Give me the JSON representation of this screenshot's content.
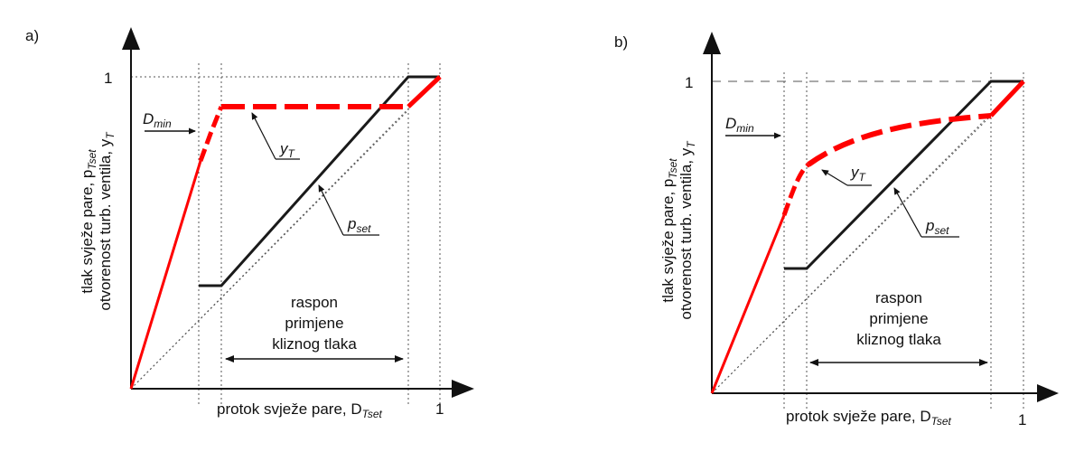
{
  "panels": [
    {
      "id": "a",
      "panel_label": "a)",
      "y_axis_line1": "tlak svježe pare, p",
      "y_axis_sub1": "Tset",
      "y_axis_line2": "otvorenost turb. ventila, y",
      "y_axis_sub2": "T",
      "x_axis_main": "protok svježe pare, D",
      "x_axis_sub": "Tset",
      "x_tick_one": "1",
      "y_tick_one": "1",
      "dmin_main": "D",
      "dmin_sub": "min",
      "yt_main": "y",
      "yt_sub": "T",
      "pset_main": "p",
      "pset_sub": "set",
      "range_line1": "raspon",
      "range_line2": "primjene",
      "range_line3": "kliznog tlaka",
      "yt_shape": "flat"
    },
    {
      "id": "b",
      "panel_label": "b)",
      "y_axis_line1": "tlak svježe pare, p",
      "y_axis_sub1": "Tset",
      "y_axis_line2": "otvorenost turb. ventila, y",
      "y_axis_sub2": "T",
      "x_axis_main": "protok svježe pare, D",
      "x_axis_sub": "Tset",
      "x_tick_one": "1",
      "y_tick_one": "1",
      "dmin_main": "D",
      "dmin_sub": "min",
      "yt_main": "y",
      "yt_sub": "T",
      "pset_main": "p",
      "pset_sub": "set",
      "range_line1": "raspon",
      "range_line2": "primjene",
      "range_line3": "kliznog tlaka",
      "yt_shape": "curved"
    }
  ],
  "colors": {
    "yt_curve": "#ff0000",
    "pset_curve": "#1a1a1a",
    "axis": "#111111",
    "guide": "#555555"
  }
}
